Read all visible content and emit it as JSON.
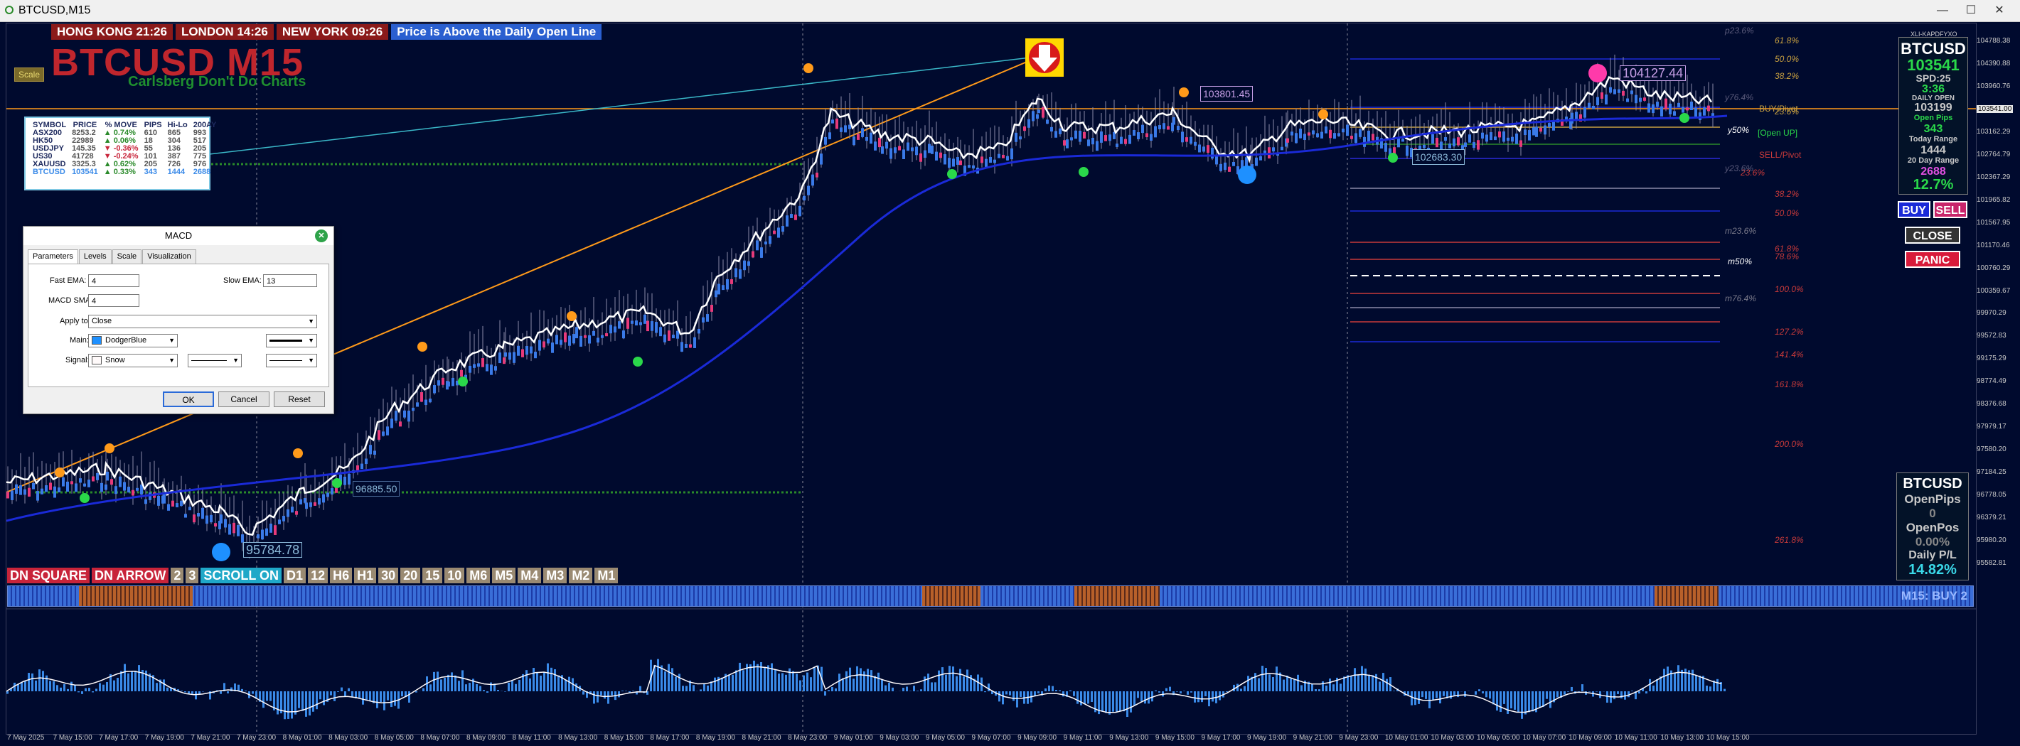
{
  "window": {
    "title": "BTCUSD,M15",
    "min": "—",
    "max": "☐",
    "close": "✕"
  },
  "clocks": [
    "HONG KONG 21:26",
    "LONDON  14:26",
    "NEW YORK  09:26"
  ],
  "status_banner": "Price is Above the Daily Open Line",
  "symbol_title": "BTCUSD M15",
  "tagline": "Carlsberg Don't Do Charts",
  "scale_button": "Scale",
  "watchlist": {
    "headers": [
      "SYMBOL",
      "PRICE",
      "% MOVE",
      "PIPS",
      "Hi-Lo",
      "200AY"
    ],
    "rows": [
      {
        "symbol": "ASX200",
        "price": "8253.2",
        "move": "▲ 0.74%",
        "pips": "610",
        "hilo": "865",
        "ay": "993",
        "color": "#2a8a2a"
      },
      {
        "symbol": "HK50",
        "price": "22989",
        "move": "▲ 0.06%",
        "pips": "18",
        "hilo": "304",
        "ay": "517",
        "color": "#2a8a2a"
      },
      {
        "symbol": "USDJPY",
        "price": "145.35",
        "move": "▼ -0.36%",
        "pips": "55",
        "hilo": "136",
        "ay": "205",
        "color": "#c8243a"
      },
      {
        "symbol": "US30",
        "price": "41728",
        "move": "▼ -0.24%",
        "pips": "101",
        "hilo": "387",
        "ay": "775",
        "color": "#c8243a"
      },
      {
        "symbol": "XAUUSD",
        "price": "3325.3",
        "move": "▲ 0.62%",
        "pips": "205",
        "hilo": "726",
        "ay": "976",
        "color": "#2a8a2a"
      },
      {
        "symbol": "BTCUSD",
        "price": "103541",
        "move": "▲ 0.33%",
        "pips": "343",
        "hilo": "1444",
        "ay": "2688",
        "color": "#2a8a2a"
      }
    ]
  },
  "dialog": {
    "title": "MACD",
    "tabs": [
      "Parameters",
      "Levels",
      "Scale",
      "Visualization"
    ],
    "fast_ema_label": "Fast EMA:",
    "fast_ema": "4",
    "slow_ema_label": "Slow EMA:",
    "slow_ema": "13",
    "macd_sma_label": "MACD SMA:",
    "macd_sma": "4",
    "apply_label": "Apply to:",
    "apply_value": "Close",
    "main_label": "Main:",
    "main_color": "DodgerBlue",
    "signal_label": "Signal:",
    "signal_color": "Snow",
    "ok": "OK",
    "cancel": "Cancel",
    "reset": "Reset"
  },
  "timeframe_bar": [
    "DN SQUARE",
    "DN ARROW",
    "2",
    "3",
    "SCROLL ON",
    "D1",
    "12",
    "H6",
    "H1",
    "30",
    "20",
    "15",
    "10",
    "M6",
    "M5",
    "M4",
    "M3",
    "M2",
    "M1"
  ],
  "signal_strip_label": "M15: BUY 2",
  "right_panel": {
    "broker": "XLI-KAPDFYXO",
    "symbol": "BTCUSD",
    "price": "103541",
    "spread": "SPD:25",
    "timer": "3:36",
    "daily_open_label": "DAILY OPEN",
    "daily_open": "103199",
    "open_pips_label": "Open Pips",
    "open_pips": "343",
    "today_range_label": "Today Range",
    "today_range": "1444",
    "day20_label": "20 Day Range",
    "day20": "2688",
    "pct": "12.7%"
  },
  "trade_buttons": {
    "buy": "BUY",
    "sell": "SELL",
    "close": "CLOSE",
    "panic": "PANIC"
  },
  "pl_panel": {
    "symbol": "BTCUSD",
    "open_pips_label": "OpenPips",
    "open_pips": "0",
    "open_pos_label": "OpenPos",
    "open_pos": "0.00%",
    "daily_pl_label": "Daily P/L",
    "daily_pl": "14.82%"
  },
  "chart_labels": {
    "high_label": "104127.44",
    "mid_high": "103801.45",
    "support": "102683.30",
    "low_label": "95784.78",
    "mid_low": "96885.50",
    "buy_pivot": "BUY/Pivot",
    "sell_pivot": "SELL/Pivot",
    "open_up": "[Open UP]",
    "y50": "y50%",
    "m50": "m50%"
  },
  "fib_levels": [
    {
      "t": "p23.6%",
      "c": "#5a5a7a"
    },
    {
      "t": "61.8%",
      "c": "#c8a040"
    },
    {
      "t": "50.0%",
      "c": "#c8a040"
    },
    {
      "t": "38.2%",
      "c": "#c8a040"
    },
    {
      "t": "y76.4%",
      "c": "#5a5a7a"
    },
    {
      "t": "23.6%",
      "c": "#c8a040"
    },
    {
      "t": "23.6%",
      "c": "#c83a3a"
    },
    {
      "t": "y23.6%",
      "c": "#5a5a7a"
    },
    {
      "t": "38.2%",
      "c": "#c83a3a"
    },
    {
      "t": "50.0%",
      "c": "#c83a3a"
    },
    {
      "t": "m23.6%",
      "c": "#7a7a8a"
    },
    {
      "t": "61.8%",
      "c": "#c83a3a"
    },
    {
      "t": "78.6%",
      "c": "#c83a3a"
    },
    {
      "t": "100.0%",
      "c": "#c83a3a"
    },
    {
      "t": "m76.4%",
      "c": "#7a7a8a"
    },
    {
      "t": "127.2%",
      "c": "#c83a3a"
    },
    {
      "t": "141.4%",
      "c": "#c83a3a"
    },
    {
      "t": "161.8%",
      "c": "#c83a3a"
    },
    {
      "t": "200.0%",
      "c": "#c83a3a"
    },
    {
      "t": "261.8%",
      "c": "#c83a3a"
    }
  ],
  "price_axis": [
    "104788.38",
    "104390.88",
    "103960.76",
    "103541.00",
    "103162.29",
    "102764.79",
    "102367.29",
    "101965.82",
    "101567.95",
    "101170.46",
    "100760.29",
    "100359.67",
    "99970.29",
    "99572.83",
    "99175.29",
    "98774.49",
    "98376.68",
    "97979.17",
    "97580.20",
    "97184.25",
    "96778.05",
    "96379.21",
    "95980.20",
    "95582.81"
  ],
  "time_axis": [
    "7 May 2025",
    "7 May 15:00",
    "7 May 17:00",
    "7 May 19:00",
    "7 May 21:00",
    "7 May 23:00",
    "8 May 01:00",
    "8 May 03:00",
    "8 May 05:00",
    "8 May 07:00",
    "8 May 09:00",
    "8 May 11:00",
    "8 May 13:00",
    "8 May 15:00",
    "8 May 17:00",
    "8 May 19:00",
    "8 May 21:00",
    "8 May 23:00",
    "9 May 01:00",
    "9 May 03:00",
    "9 May 05:00",
    "9 May 07:00",
    "9 May 09:00",
    "9 May 11:00",
    "9 May 13:00",
    "9 May 15:00",
    "9 May 17:00",
    "9 May 19:00",
    "9 May 21:00",
    "9 May 23:00",
    "10 May 01:00",
    "10 May 03:00",
    "10 May 05:00",
    "10 May 07:00",
    "10 May 09:00",
    "10 May 11:00",
    "10 May 13:00",
    "10 May 15:00"
  ],
  "colors": {
    "bg": "#000a2e",
    "bull": "#3a7ae8",
    "bear": "#e83a7a",
    "price": "#ffffff",
    "ma": "#1a2ad8",
    "trend_orange": "#ff9a1a",
    "trend_cyan": "#3ab8c8"
  }
}
